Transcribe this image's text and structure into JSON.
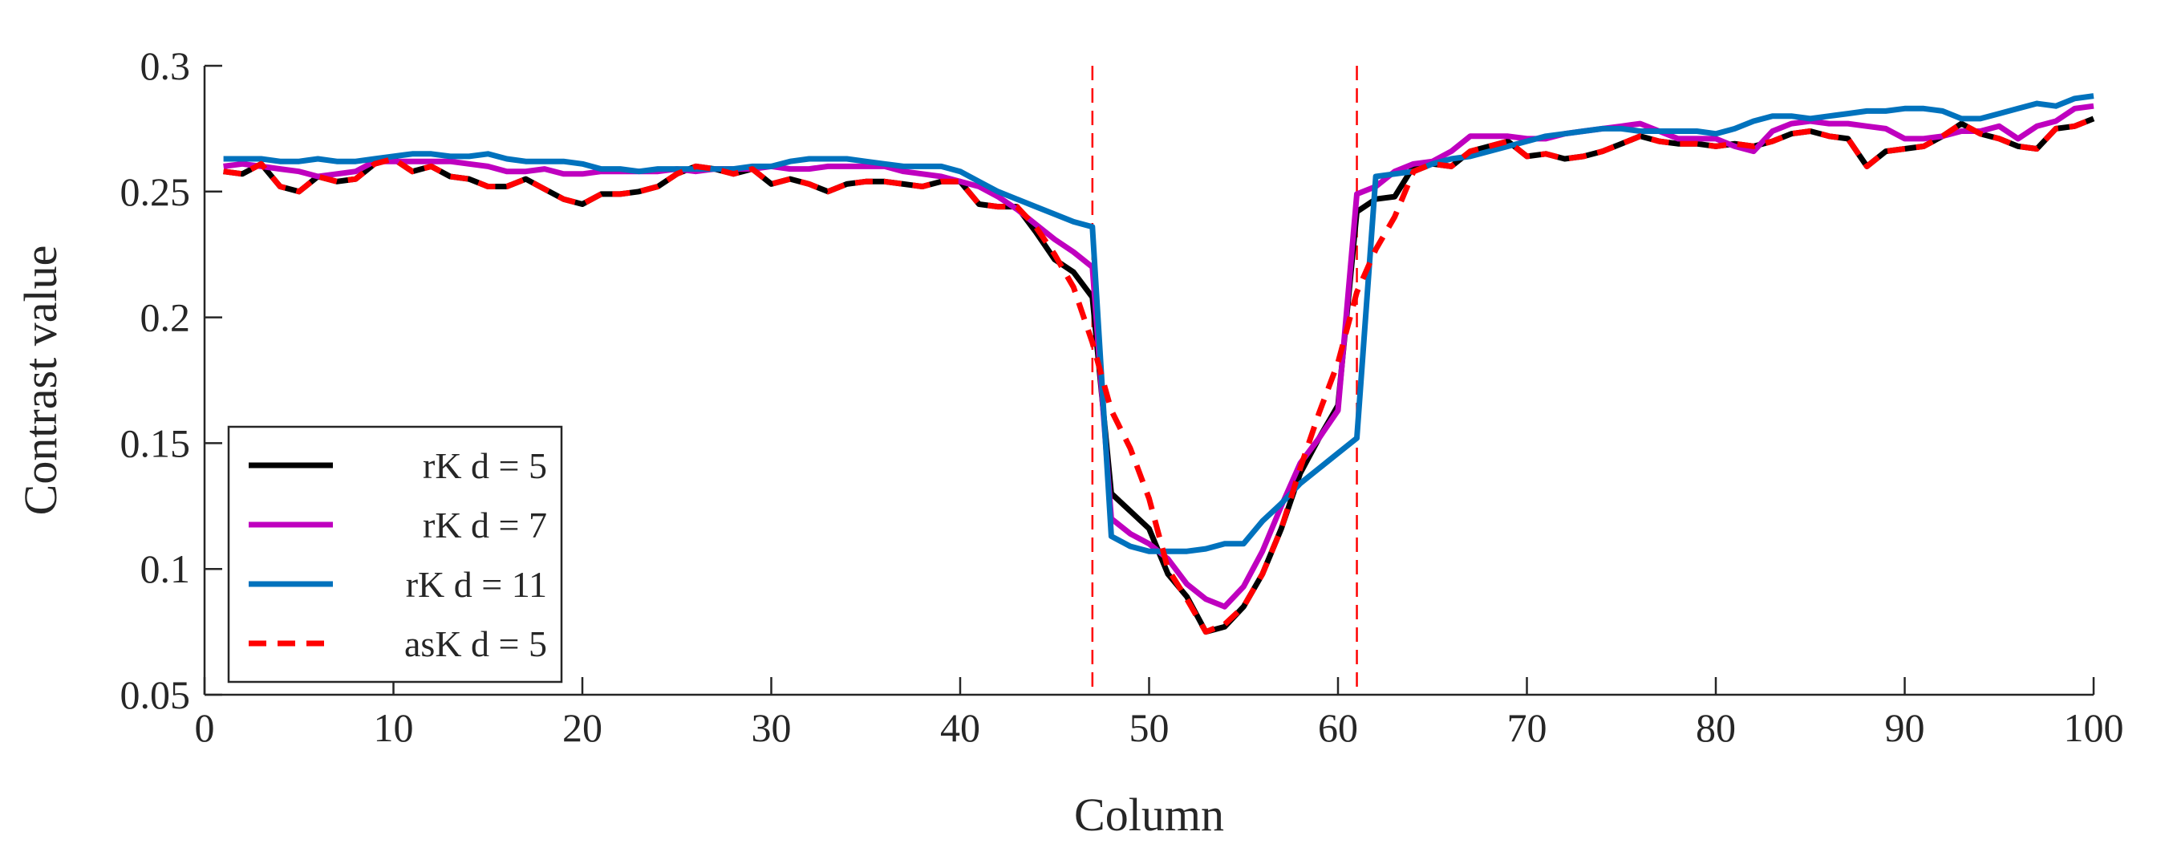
{
  "chart_data": {
    "type": "line",
    "xlabel": "Column",
    "ylabel": "Contrast value",
    "xlim": [
      0,
      100
    ],
    "ylim": [
      0.05,
      0.3
    ],
    "xticks": [
      "0",
      "10",
      "20",
      "30",
      "40",
      "50",
      "60",
      "70",
      "80",
      "90",
      "100"
    ],
    "yticks": [
      "0.05",
      "0.1",
      "0.15",
      "0.2",
      "0.25",
      "0.3"
    ],
    "xtick_values": [
      0,
      10,
      20,
      30,
      40,
      50,
      60,
      70,
      80,
      90,
      100
    ],
    "ytick_values": [
      0.05,
      0.1,
      0.15,
      0.2,
      0.25,
      0.3
    ],
    "reference_lines": [
      {
        "x": 47,
        "color": "#ff0000",
        "style": "dashed"
      },
      {
        "x": 61,
        "color": "#ff0000",
        "style": "dashed"
      }
    ],
    "legend_position": "bottom-left",
    "series": [
      {
        "name": "rK d = 5",
        "color": "#000000",
        "style": "solid",
        "x": [
          1,
          2,
          3,
          4,
          5,
          6,
          7,
          8,
          9,
          10,
          11,
          12,
          13,
          14,
          15,
          16,
          17,
          18,
          19,
          20,
          21,
          22,
          23,
          24,
          25,
          26,
          27,
          28,
          29,
          30,
          31,
          32,
          33,
          34,
          35,
          36,
          37,
          38,
          39,
          40,
          41,
          42,
          43,
          44,
          45,
          46,
          47,
          48,
          49,
          50,
          51,
          52,
          53,
          54,
          55,
          56,
          57,
          58,
          59,
          60,
          61,
          62,
          63,
          64,
          65,
          66,
          67,
          68,
          69,
          70,
          71,
          72,
          73,
          74,
          75,
          76,
          77,
          78,
          79,
          80,
          81,
          82,
          83,
          84,
          85,
          86,
          87,
          88,
          89,
          90,
          91,
          92,
          93,
          94,
          95,
          96,
          97,
          98,
          99,
          100
        ],
        "values": [
          0.258,
          0.257,
          0.261,
          0.252,
          0.25,
          0.256,
          0.254,
          0.255,
          0.261,
          0.263,
          0.258,
          0.26,
          0.256,
          0.255,
          0.252,
          0.252,
          0.255,
          0.251,
          0.247,
          0.245,
          0.249,
          0.249,
          0.25,
          0.252,
          0.257,
          0.26,
          0.259,
          0.257,
          0.259,
          0.253,
          0.255,
          0.253,
          0.25,
          0.253,
          0.254,
          0.254,
          0.253,
          0.252,
          0.254,
          0.254,
          0.245,
          0.244,
          0.244,
          0.234,
          0.223,
          0.218,
          0.208,
          0.13,
          0.123,
          0.116,
          0.098,
          0.089,
          0.075,
          0.077,
          0.085,
          0.098,
          0.116,
          0.138,
          0.152,
          0.165,
          0.242,
          0.247,
          0.248,
          0.26,
          0.261,
          0.26,
          0.266,
          0.268,
          0.27,
          0.264,
          0.265,
          0.263,
          0.264,
          0.266,
          0.269,
          0.272,
          0.27,
          0.269,
          0.269,
          0.268,
          0.269,
          0.268,
          0.27,
          0.273,
          0.274,
          0.272,
          0.271,
          0.26,
          0.266,
          0.267,
          0.268,
          0.272,
          0.277,
          0.273,
          0.271,
          0.268,
          0.267,
          0.275,
          0.276,
          0.279
        ]
      },
      {
        "name": "rK d = 7",
        "color": "#bf00bf",
        "style": "solid",
        "x": [
          1,
          2,
          3,
          4,
          5,
          6,
          7,
          8,
          9,
          10,
          11,
          12,
          13,
          14,
          15,
          16,
          17,
          18,
          19,
          20,
          21,
          22,
          23,
          24,
          25,
          26,
          27,
          28,
          29,
          30,
          31,
          32,
          33,
          34,
          35,
          36,
          37,
          38,
          39,
          40,
          41,
          42,
          43,
          44,
          45,
          46,
          47,
          48,
          49,
          50,
          51,
          52,
          53,
          54,
          55,
          56,
          57,
          58,
          59,
          60,
          61,
          62,
          63,
          64,
          65,
          66,
          67,
          68,
          69,
          70,
          71,
          72,
          73,
          74,
          75,
          76,
          77,
          78,
          79,
          80,
          81,
          82,
          83,
          84,
          85,
          86,
          87,
          88,
          89,
          90,
          91,
          92,
          93,
          94,
          95,
          96,
          97,
          98,
          99,
          100
        ],
        "values": [
          0.26,
          0.261,
          0.26,
          0.259,
          0.258,
          0.256,
          0.257,
          0.258,
          0.262,
          0.262,
          0.262,
          0.262,
          0.262,
          0.261,
          0.26,
          0.258,
          0.258,
          0.259,
          0.257,
          0.257,
          0.258,
          0.258,
          0.258,
          0.258,
          0.259,
          0.258,
          0.259,
          0.259,
          0.259,
          0.26,
          0.259,
          0.259,
          0.26,
          0.26,
          0.26,
          0.26,
          0.258,
          0.257,
          0.256,
          0.254,
          0.252,
          0.248,
          0.243,
          0.237,
          0.231,
          0.226,
          0.22,
          0.12,
          0.114,
          0.11,
          0.104,
          0.094,
          0.088,
          0.085,
          0.093,
          0.107,
          0.125,
          0.142,
          0.152,
          0.163,
          0.249,
          0.252,
          0.258,
          0.261,
          0.262,
          0.266,
          0.272,
          0.272,
          0.272,
          0.271,
          0.271,
          0.273,
          0.274,
          0.275,
          0.276,
          0.277,
          0.274,
          0.271,
          0.271,
          0.271,
          0.268,
          0.266,
          0.274,
          0.277,
          0.278,
          0.277,
          0.277,
          0.276,
          0.275,
          0.271,
          0.271,
          0.272,
          0.274,
          0.274,
          0.276,
          0.271,
          0.276,
          0.278,
          0.283,
          0.284
        ]
      },
      {
        "name": "rK d = 11",
        "color": "#0072bd",
        "style": "solid",
        "x": [
          1,
          2,
          3,
          4,
          5,
          6,
          7,
          8,
          9,
          10,
          11,
          12,
          13,
          14,
          15,
          16,
          17,
          18,
          19,
          20,
          21,
          22,
          23,
          24,
          25,
          26,
          27,
          28,
          29,
          30,
          31,
          32,
          33,
          34,
          35,
          36,
          37,
          38,
          39,
          40,
          41,
          42,
          43,
          44,
          45,
          46,
          47,
          48,
          49,
          50,
          51,
          52,
          53,
          54,
          55,
          56,
          57,
          58,
          59,
          60,
          61,
          62,
          63,
          64,
          65,
          66,
          67,
          68,
          69,
          70,
          71,
          72,
          73,
          74,
          75,
          76,
          77,
          78,
          79,
          80,
          81,
          82,
          83,
          84,
          85,
          86,
          87,
          88,
          89,
          90,
          91,
          92,
          93,
          94,
          95,
          96,
          97,
          98,
          99,
          100
        ],
        "values": [
          0.263,
          0.263,
          0.263,
          0.262,
          0.262,
          0.263,
          0.262,
          0.262,
          0.263,
          0.264,
          0.265,
          0.265,
          0.264,
          0.264,
          0.265,
          0.263,
          0.262,
          0.262,
          0.262,
          0.261,
          0.259,
          0.259,
          0.258,
          0.259,
          0.259,
          0.259,
          0.259,
          0.259,
          0.26,
          0.26,
          0.262,
          0.263,
          0.263,
          0.263,
          0.262,
          0.261,
          0.26,
          0.26,
          0.26,
          0.258,
          0.254,
          0.25,
          0.247,
          0.244,
          0.241,
          0.238,
          0.236,
          0.113,
          0.109,
          0.107,
          0.107,
          0.107,
          0.108,
          0.11,
          0.11,
          0.119,
          0.126,
          0.134,
          0.14,
          0.146,
          0.152,
          0.256,
          0.257,
          0.258,
          0.261,
          0.263,
          0.264,
          0.266,
          0.268,
          0.27,
          0.272,
          0.273,
          0.274,
          0.275,
          0.275,
          0.274,
          0.274,
          0.274,
          0.274,
          0.273,
          0.275,
          0.278,
          0.28,
          0.28,
          0.279,
          0.28,
          0.281,
          0.282,
          0.282,
          0.283,
          0.283,
          0.282,
          0.279,
          0.279,
          0.281,
          0.283,
          0.285,
          0.284,
          0.287,
          0.288
        ]
      },
      {
        "name": "asK d = 5",
        "color": "#ff0000",
        "style": "dashed",
        "x": [
          1,
          2,
          3,
          4,
          5,
          6,
          7,
          8,
          9,
          10,
          11,
          12,
          13,
          14,
          15,
          16,
          17,
          18,
          19,
          20,
          21,
          22,
          23,
          24,
          25,
          26,
          27,
          28,
          29,
          30,
          31,
          32,
          33,
          34,
          35,
          36,
          37,
          38,
          39,
          40,
          41,
          42,
          43,
          44,
          45,
          46,
          47,
          48,
          49,
          50,
          51,
          52,
          53,
          54,
          55,
          56,
          57,
          58,
          59,
          60,
          61,
          62,
          63,
          64,
          65,
          66,
          67,
          68,
          69,
          70,
          71,
          72,
          73,
          74,
          75,
          76,
          77,
          78,
          79,
          80,
          81,
          82,
          83,
          84,
          85,
          86,
          87,
          88,
          89,
          90,
          91,
          92,
          93,
          94,
          95,
          96,
          97,
          98,
          99,
          100
        ],
        "values": [
          0.258,
          0.257,
          0.261,
          0.252,
          0.25,
          0.256,
          0.254,
          0.255,
          0.261,
          0.263,
          0.258,
          0.26,
          0.256,
          0.255,
          0.252,
          0.252,
          0.255,
          0.251,
          0.247,
          0.245,
          0.249,
          0.249,
          0.25,
          0.252,
          0.257,
          0.26,
          0.259,
          0.257,
          0.259,
          0.253,
          0.255,
          0.253,
          0.25,
          0.253,
          0.254,
          0.254,
          0.253,
          0.252,
          0.254,
          0.254,
          0.245,
          0.244,
          0.244,
          0.236,
          0.225,
          0.212,
          0.19,
          0.163,
          0.148,
          0.128,
          0.1,
          0.088,
          0.075,
          0.078,
          0.085,
          0.098,
          0.116,
          0.14,
          0.162,
          0.182,
          0.21,
          0.227,
          0.24,
          0.258,
          0.261,
          0.26,
          0.266,
          0.268,
          0.27,
          0.264,
          0.265,
          0.263,
          0.264,
          0.266,
          0.269,
          0.272,
          0.27,
          0.269,
          0.269,
          0.268,
          0.269,
          0.268,
          0.27,
          0.273,
          0.274,
          0.272,
          0.271,
          0.26,
          0.266,
          0.267,
          0.268,
          0.272,
          0.277,
          0.273,
          0.271,
          0.268,
          0.267,
          0.275,
          0.276,
          0.279
        ]
      }
    ]
  }
}
